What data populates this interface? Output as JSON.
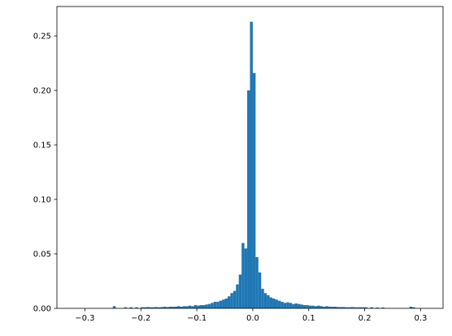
{
  "chart_data": {
    "type": "bar",
    "title": "",
    "xlabel": "",
    "ylabel": "",
    "xlim": [
      -0.35,
      0.34
    ],
    "ylim": [
      0,
      0.277
    ],
    "xticks": [
      -0.3,
      -0.2,
      -0.1,
      0.0,
      0.1,
      0.2,
      0.3
    ],
    "xtick_labels": [
      "−0.3",
      "−0.2",
      "−0.1",
      "0.0",
      "0.1",
      "0.2",
      "0.3"
    ],
    "yticks": [
      0.0,
      0.05,
      0.1,
      0.15,
      0.2,
      0.25
    ],
    "ytick_labels": [
      "0.00",
      "0.05",
      "0.10",
      "0.15",
      "0.20",
      "0.25"
    ],
    "grid": false,
    "bar_color": "#1f77b4",
    "bin_width": 0.005,
    "bin_left_edges": [
      -0.25,
      -0.23,
      -0.22,
      -0.21,
      -0.2,
      -0.195,
      -0.19,
      -0.185,
      -0.18,
      -0.175,
      -0.17,
      -0.165,
      -0.16,
      -0.155,
      -0.15,
      -0.145,
      -0.14,
      -0.135,
      -0.13,
      -0.125,
      -0.12,
      -0.115,
      -0.11,
      -0.105,
      -0.1,
      -0.095,
      -0.09,
      -0.085,
      -0.08,
      -0.075,
      -0.07,
      -0.065,
      -0.06,
      -0.055,
      -0.05,
      -0.045,
      -0.04,
      -0.035,
      -0.03,
      -0.025,
      -0.02,
      -0.015,
      -0.01,
      -0.005,
      0.0,
      0.005,
      0.01,
      0.015,
      0.02,
      0.025,
      0.03,
      0.035,
      0.04,
      0.045,
      0.05,
      0.055,
      0.06,
      0.065,
      0.07,
      0.075,
      0.08,
      0.085,
      0.09,
      0.095,
      0.1,
      0.105,
      0.11,
      0.115,
      0.12,
      0.125,
      0.13,
      0.135,
      0.14,
      0.145,
      0.15,
      0.155,
      0.16,
      0.165,
      0.17,
      0.175,
      0.18,
      0.185,
      0.19,
      0.195,
      0.2,
      0.21,
      0.22,
      0.23,
      0.28,
      0.285
    ],
    "values": [
      0.002,
      0.001,
      0.001,
      0.001,
      0.001,
      0.001,
      0.0012,
      0.001,
      0.001,
      0.0012,
      0.001,
      0.0012,
      0.0015,
      0.0012,
      0.0015,
      0.0015,
      0.0015,
      0.002,
      0.0015,
      0.002,
      0.002,
      0.0025,
      0.002,
      0.003,
      0.0025,
      0.003,
      0.003,
      0.0035,
      0.004,
      0.005,
      0.006,
      0.006,
      0.007,
      0.008,
      0.009,
      0.011,
      0.014,
      0.016,
      0.022,
      0.031,
      0.06,
      0.055,
      0.2,
      0.263,
      0.216,
      0.047,
      0.033,
      0.018,
      0.014,
      0.012,
      0.01,
      0.009,
      0.008,
      0.007,
      0.006,
      0.005,
      0.0055,
      0.005,
      0.004,
      0.0045,
      0.004,
      0.0035,
      0.003,
      0.003,
      0.0025,
      0.0025,
      0.002,
      0.0025,
      0.002,
      0.0015,
      0.002,
      0.0015,
      0.0015,
      0.0015,
      0.0012,
      0.0012,
      0.0012,
      0.001,
      0.001,
      0.0012,
      0.001,
      0.001,
      0.001,
      0.001,
      0.001,
      0.001,
      0.0008,
      0.0008,
      0.0015,
      0.001
    ]
  }
}
